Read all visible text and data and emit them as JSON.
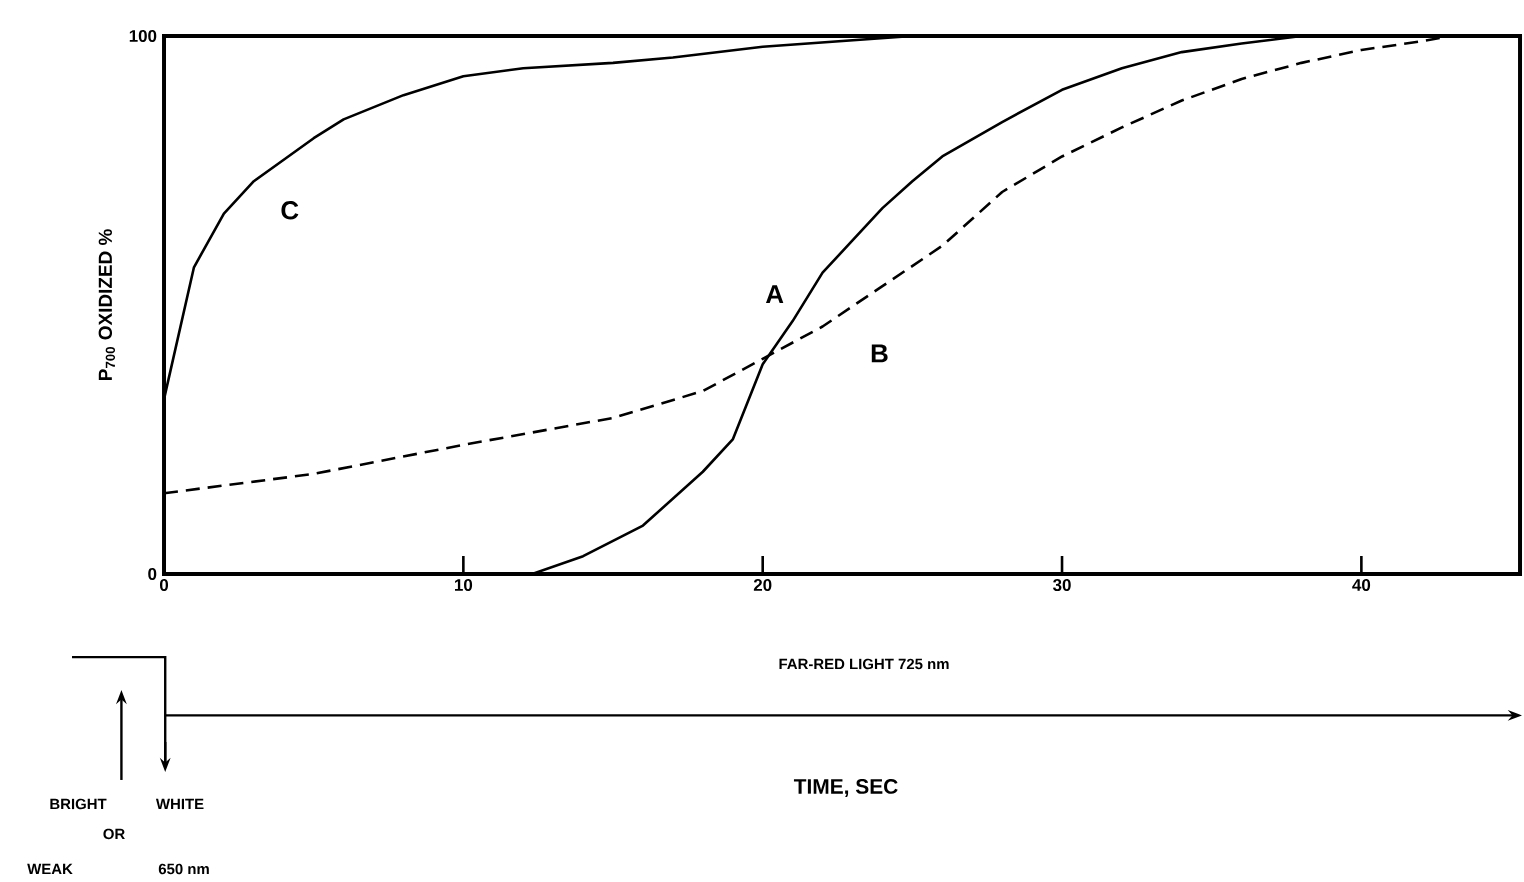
{
  "chart_data": {
    "type": "line",
    "ylabel": "P$_{700}$ OXIDIZED %",
    "xlim": [
      0,
      45.3
    ],
    "ylim": [
      0,
      100
    ],
    "xticks": [
      0,
      10,
      20,
      30,
      40
    ],
    "yticks": [
      0,
      100
    ],
    "grid": false,
    "marker": "none",
    "annotations": [
      "FAR-RED LIGHT  725 nm",
      "TIME, SEC",
      "BRIGHT",
      "WHITE",
      "OR",
      "WEAK",
      "650 nm"
    ],
    "series": [
      {
        "name": "A",
        "color": "#000000",
        "line_style": "solid",
        "x": [
          12.3,
          14,
          16,
          18,
          19,
          20,
          21,
          22,
          23,
          24,
          25,
          26,
          28,
          30,
          32,
          34,
          36,
          38,
          45.3
        ],
        "values": [
          0,
          3.3,
          9,
          19,
          25,
          39,
          47,
          56,
          62,
          68,
          73,
          77.6,
          84,
          90,
          94,
          97,
          98.6,
          100,
          100
        ]
      },
      {
        "name": "B",
        "color": "#000000",
        "line_style": "dashed",
        "x": [
          0,
          5,
          10,
          15,
          18,
          20,
          22,
          24,
          26,
          28,
          30,
          32,
          34,
          36,
          38,
          40,
          42,
          43,
          45.3
        ],
        "values": [
          15,
          18.6,
          24,
          29,
          34,
          40,
          46,
          53.5,
          61,
          71,
          77.6,
          83,
          88,
          92,
          95,
          97.4,
          99,
          100,
          100
        ]
      },
      {
        "name": "C",
        "color": "#000000",
        "line_style": "solid",
        "x": [
          0,
          1,
          2,
          3,
          4,
          5,
          6,
          8,
          10,
          12,
          15,
          17,
          20,
          25,
          45.3
        ],
        "values": [
          32.5,
          57,
          67,
          73,
          77,
          81,
          84.5,
          89,
          92.5,
          94,
          95,
          96,
          98,
          100,
          100
        ]
      }
    ]
  }
}
